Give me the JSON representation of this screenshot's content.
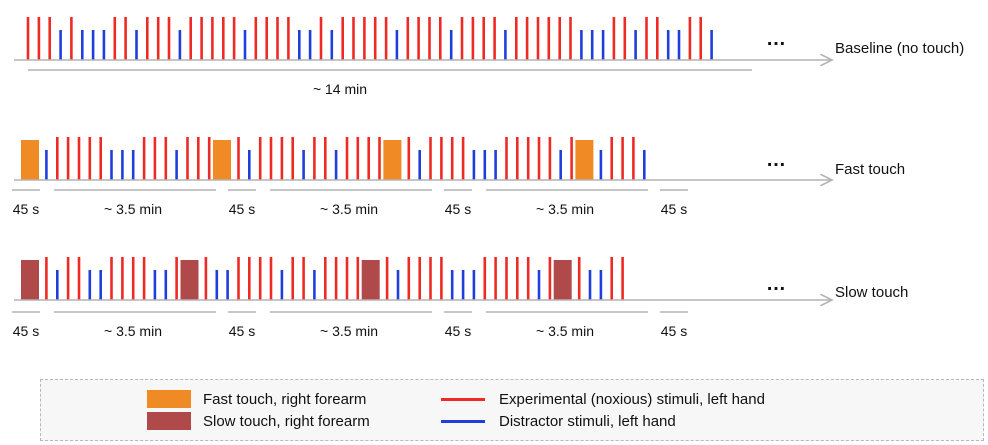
{
  "colors": {
    "experimental": "#ee2a24",
    "distractor": "#1f3fdc",
    "fast_touch": "#f08a24",
    "slow_touch": "#b04a4a",
    "axis": "#b3b3b3"
  },
  "rows": [
    {
      "label": "Baseline (no touch)",
      "sequence": "RRRBRBBBRRBRRRBRRRRRBRRRRBBRBRRRRRBRRRRBRRRRBRRRRRRBBBRRBRRBBRRB",
      "touch_blocks": [],
      "continuation": "…",
      "intervals": [
        {
          "label": "~ 14 min"
        }
      ]
    },
    {
      "label": "Fast touch",
      "sequence": "TBRRRRRBBBRRRBRRRTRBRRRRBRRBRRRRTRBRRRRBBBRRRRRBRTBRRRB",
      "touch_type": "fast",
      "continuation": "…",
      "intervals": [
        {
          "label": "45 s"
        },
        {
          "label": "~ 3.5 min"
        },
        {
          "label": "45 s"
        },
        {
          "label": "~ 3.5 min"
        },
        {
          "label": "45 s"
        },
        {
          "label": "~ 3.5 min"
        },
        {
          "label": "45 s"
        }
      ]
    },
    {
      "label": "Slow touch",
      "sequence": "TRBRRBBRRRRBBRTRBBRRRRBRRBRRRRTRBRRRRBBBRRRRRBRTRBBRR",
      "touch_type": "slow",
      "continuation": "…",
      "intervals": [
        {
          "label": "45 s"
        },
        {
          "label": "~ 3.5 min"
        },
        {
          "label": "45 s"
        },
        {
          "label": "~ 3.5 min"
        },
        {
          "label": "45 s"
        },
        {
          "label": "~ 3.5 min"
        },
        {
          "label": "45 s"
        }
      ]
    }
  ],
  "legend": {
    "fast_touch": "Fast touch, right forearm",
    "slow_touch": "Slow touch, right forearm",
    "experimental": "Experimental (noxious) stimuli, left hand",
    "distractor": "Distractor stimuli, left hand"
  }
}
